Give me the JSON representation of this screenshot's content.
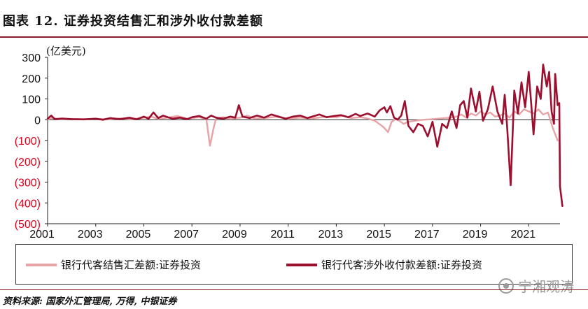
{
  "figure": {
    "title": "图表 12. 证券投资结售汇和涉外收付款差额",
    "source": "资料来源: 国家外汇管理局, 万得, 中银证券",
    "watermark": "宁湘观涛"
  },
  "chart_data": {
    "type": "line",
    "title": "",
    "ylabel": "(亿美元)",
    "xlabel": "",
    "ylim": [
      -500,
      300
    ],
    "xlim": [
      2001,
      2022.3
    ],
    "yticks": [
      300,
      200,
      100,
      0,
      -100,
      -200,
      -300,
      -400,
      -500
    ],
    "ytick_labels": [
      "300",
      "200",
      "100",
      "0",
      "(100)",
      "(200)",
      "(300)",
      "(400)",
      "(500)"
    ],
    "xticks": [
      2001,
      2003,
      2005,
      2007,
      2009,
      2011,
      2013,
      2015,
      2017,
      2019,
      2021
    ],
    "xtick_labels": [
      "2001",
      "2003",
      "2005",
      "2007",
      "2009",
      "2011",
      "2013",
      "2015",
      "2017",
      "2019",
      "2021"
    ],
    "grid": false,
    "legend_position": "bottom",
    "series": [
      {
        "name": "银行代客结售汇差额:证券投资",
        "color": "#e8a3a6",
        "points": [
          [
            2001.0,
            2
          ],
          [
            2001.2,
            8
          ],
          [
            2001.5,
            3
          ],
          [
            2002.0,
            4
          ],
          [
            2002.5,
            1
          ],
          [
            2003.0,
            5
          ],
          [
            2003.5,
            2
          ],
          [
            2004.0,
            6
          ],
          [
            2004.5,
            3
          ],
          [
            2005.0,
            9
          ],
          [
            2005.3,
            15
          ],
          [
            2005.6,
            4
          ],
          [
            2006.0,
            10
          ],
          [
            2006.4,
            18
          ],
          [
            2006.8,
            5
          ],
          [
            2007.0,
            8
          ],
          [
            2007.3,
            12
          ],
          [
            2007.6,
            2
          ],
          [
            2007.75,
            -125
          ],
          [
            2007.9,
            -40
          ],
          [
            2008.0,
            6
          ],
          [
            2008.3,
            12
          ],
          [
            2008.6,
            4
          ],
          [
            2009.0,
            10
          ],
          [
            2009.3,
            20
          ],
          [
            2009.6,
            6
          ],
          [
            2010.0,
            8
          ],
          [
            2010.5,
            14
          ],
          [
            2011.0,
            4
          ],
          [
            2011.5,
            10
          ],
          [
            2012.0,
            6
          ],
          [
            2012.5,
            14
          ],
          [
            2013.0,
            12
          ],
          [
            2013.3,
            20
          ],
          [
            2013.6,
            8
          ],
          [
            2014.0,
            12
          ],
          [
            2014.3,
            6
          ],
          [
            2014.6,
            -5
          ],
          [
            2014.9,
            -30
          ],
          [
            2015.0,
            -40
          ],
          [
            2015.15,
            -60
          ],
          [
            2015.3,
            -10
          ],
          [
            2015.5,
            5
          ],
          [
            2015.8,
            -20
          ],
          [
            2016.0,
            -10
          ],
          [
            2016.3,
            -5
          ],
          [
            2016.6,
            0
          ],
          [
            2016.9,
            2
          ],
          [
            2017.2,
            5
          ],
          [
            2017.5,
            8
          ],
          [
            2017.8,
            10
          ],
          [
            2018.0,
            15
          ],
          [
            2018.2,
            25
          ],
          [
            2018.4,
            10
          ],
          [
            2018.6,
            30
          ],
          [
            2018.8,
            20
          ],
          [
            2019.0,
            40
          ],
          [
            2019.2,
            25
          ],
          [
            2019.4,
            35
          ],
          [
            2019.6,
            15
          ],
          [
            2019.8,
            20
          ],
          [
            2020.0,
            30
          ],
          [
            2020.2,
            10
          ],
          [
            2020.4,
            40
          ],
          [
            2020.6,
            25
          ],
          [
            2020.8,
            50
          ],
          [
            2021.0,
            40
          ],
          [
            2021.2,
            30
          ],
          [
            2021.4,
            50
          ],
          [
            2021.6,
            25
          ],
          [
            2021.8,
            35
          ],
          [
            2022.0,
            -40
          ],
          [
            2022.2,
            -100
          ]
        ]
      },
      {
        "name": "银行代客涉外收付款差额:证券投资",
        "color": "#9c0f2e",
        "points": [
          [
            2001.0,
            5
          ],
          [
            2001.15,
            20
          ],
          [
            2001.3,
            3
          ],
          [
            2001.6,
            6
          ],
          [
            2002.0,
            3
          ],
          [
            2002.5,
            2
          ],
          [
            2003.0,
            5
          ],
          [
            2003.3,
            0
          ],
          [
            2003.6,
            8
          ],
          [
            2004.0,
            3
          ],
          [
            2004.4,
            10
          ],
          [
            2004.7,
            2
          ],
          [
            2005.0,
            15
          ],
          [
            2005.2,
            5
          ],
          [
            2005.4,
            35
          ],
          [
            2005.6,
            8
          ],
          [
            2005.8,
            20
          ],
          [
            2006.0,
            12
          ],
          [
            2006.2,
            5
          ],
          [
            2006.5,
            10
          ],
          [
            2006.8,
            3
          ],
          [
            2007.0,
            12
          ],
          [
            2007.3,
            18
          ],
          [
            2007.6,
            5
          ],
          [
            2007.8,
            20
          ],
          [
            2008.0,
            10
          ],
          [
            2008.3,
            5
          ],
          [
            2008.6,
            15
          ],
          [
            2008.8,
            10
          ],
          [
            2008.95,
            70
          ],
          [
            2009.1,
            15
          ],
          [
            2009.4,
            8
          ],
          [
            2009.7,
            20
          ],
          [
            2010.0,
            10
          ],
          [
            2010.3,
            25
          ],
          [
            2010.6,
            15
          ],
          [
            2010.9,
            5
          ],
          [
            2011.2,
            15
          ],
          [
            2011.5,
            20
          ],
          [
            2011.8,
            8
          ],
          [
            2012.0,
            15
          ],
          [
            2012.3,
            25
          ],
          [
            2012.6,
            12
          ],
          [
            2012.9,
            18
          ],
          [
            2013.2,
            22
          ],
          [
            2013.5,
            12
          ],
          [
            2013.8,
            28
          ],
          [
            2014.0,
            18
          ],
          [
            2014.3,
            30
          ],
          [
            2014.6,
            15
          ],
          [
            2014.8,
            45
          ],
          [
            2015.0,
            60
          ],
          [
            2015.1,
            35
          ],
          [
            2015.25,
            65
          ],
          [
            2015.4,
            10
          ],
          [
            2015.55,
            0
          ],
          [
            2015.7,
            20
          ],
          [
            2015.85,
            90
          ],
          [
            2016.0,
            -30
          ],
          [
            2016.2,
            -60
          ],
          [
            2016.4,
            -20
          ],
          [
            2016.6,
            -30
          ],
          [
            2016.8,
            -80
          ],
          [
            2017.0,
            -10
          ],
          [
            2017.2,
            -130
          ],
          [
            2017.4,
            -20
          ],
          [
            2017.6,
            -40
          ],
          [
            2017.8,
            40
          ],
          [
            2018.0,
            -40
          ],
          [
            2018.15,
            70
          ],
          [
            2018.3,
            90
          ],
          [
            2018.45,
            10
          ],
          [
            2018.6,
            150
          ],
          [
            2018.8,
            40
          ],
          [
            2018.95,
            135
          ],
          [
            2019.1,
            -5
          ],
          [
            2019.3,
            50
          ],
          [
            2019.5,
            160
          ],
          [
            2019.7,
            40
          ],
          [
            2019.9,
            -20
          ],
          [
            2020.0,
            120
          ],
          [
            2020.1,
            -30
          ],
          [
            2020.25,
            -315
          ],
          [
            2020.4,
            140
          ],
          [
            2020.55,
            30
          ],
          [
            2020.7,
            180
          ],
          [
            2020.85,
            60
          ],
          [
            2021.0,
            230
          ],
          [
            2021.1,
            80
          ],
          [
            2021.2,
            -70
          ],
          [
            2021.35,
            160
          ],
          [
            2021.5,
            100
          ],
          [
            2021.6,
            265
          ],
          [
            2021.75,
            160
          ],
          [
            2021.85,
            230
          ],
          [
            2021.95,
            40
          ],
          [
            2022.05,
            -20
          ],
          [
            2022.1,
            220
          ],
          [
            2022.2,
            70
          ],
          [
            2022.27,
            80
          ],
          [
            2022.3,
            -320
          ],
          [
            2022.4,
            -415
          ]
        ]
      }
    ]
  }
}
